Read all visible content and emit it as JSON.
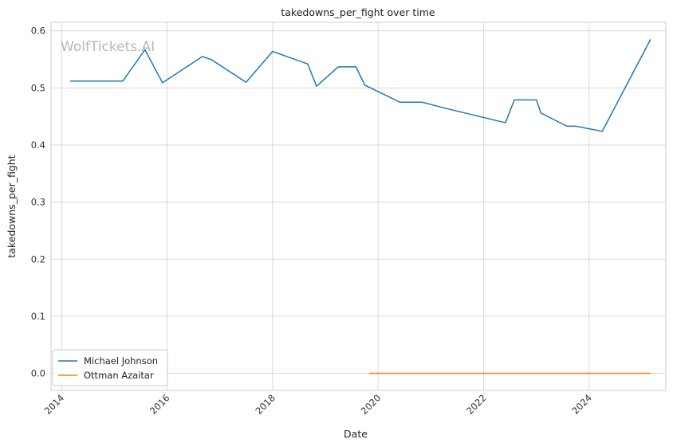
{
  "chart_data": {
    "type": "line",
    "title": "takedowns_per_fight over time",
    "xlabel": "Date",
    "ylabel": "takedowns_per_fight",
    "watermark": "WolfTickets.AI",
    "x_ticks": [
      "2014",
      "2016",
      "2018",
      "2020",
      "2022",
      "2024"
    ],
    "y_ticks": [
      "0.0",
      "0.1",
      "0.2",
      "0.3",
      "0.4",
      "0.5",
      "0.6"
    ],
    "ylim": [
      -0.03,
      0.615
    ],
    "xlim": [
      "2013-10-20",
      "2025-06-15"
    ],
    "grid": true,
    "legend_position": "lower-left",
    "series": [
      {
        "name": "Michael Johnson",
        "color": "#1f77b4",
        "points": [
          [
            "2014-03-01",
            0.512
          ],
          [
            "2015-03-01",
            0.512
          ],
          [
            "2015-08-01",
            0.567
          ],
          [
            "2015-12-01",
            0.509
          ],
          [
            "2016-09-01",
            0.555
          ],
          [
            "2016-11-01",
            0.55
          ],
          [
            "2017-07-01",
            0.51
          ],
          [
            "2018-01-01",
            0.564
          ],
          [
            "2018-09-01",
            0.542
          ],
          [
            "2018-11-01",
            0.503
          ],
          [
            "2019-04-01",
            0.537
          ],
          [
            "2019-08-01",
            0.537
          ],
          [
            "2019-10-01",
            0.505
          ],
          [
            "2020-06-01",
            0.475
          ],
          [
            "2020-11-01",
            0.475
          ],
          [
            "2021-04-01",
            0.465
          ],
          [
            "2022-06-01",
            0.439
          ],
          [
            "2022-08-01",
            0.479
          ],
          [
            "2023-01-01",
            0.479
          ],
          [
            "2023-02-01",
            0.456
          ],
          [
            "2023-08-01",
            0.433
          ],
          [
            "2023-10-01",
            0.433
          ],
          [
            "2024-04-01",
            0.424
          ],
          [
            "2025-03-01",
            0.585
          ]
        ]
      },
      {
        "name": "Ottman Azaitar",
        "color": "#ff7f0e",
        "points": [
          [
            "2019-11-01",
            0.0
          ],
          [
            "2025-03-01",
            0.0
          ]
        ]
      }
    ]
  }
}
